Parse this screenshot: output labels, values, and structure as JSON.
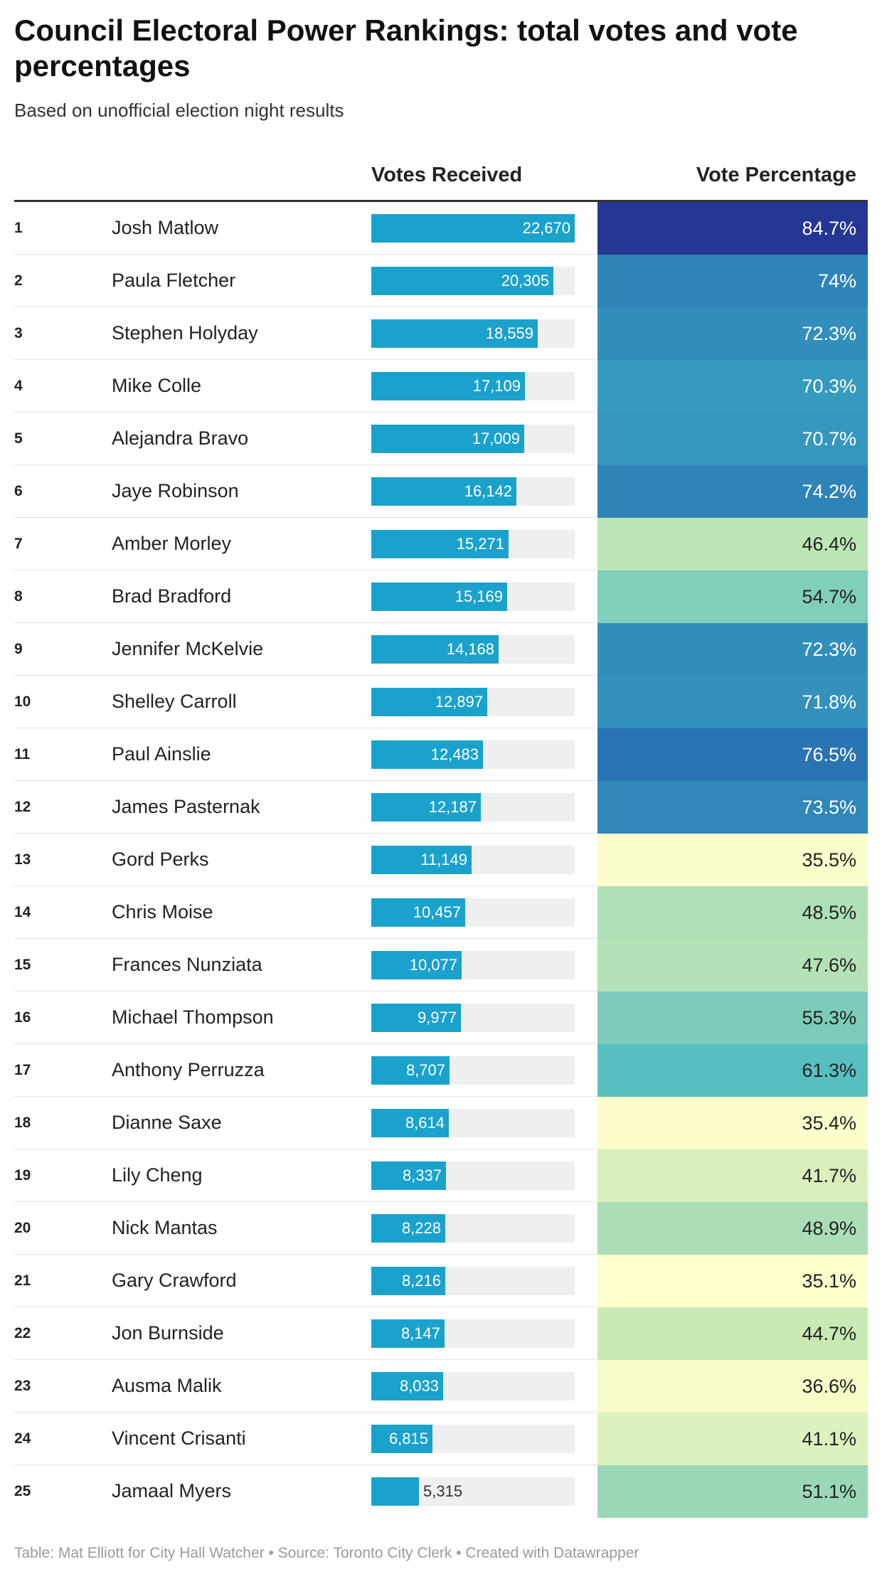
{
  "title": "Council Electoral Power Rankings: total votes and vote percentages",
  "subtitle": "Based on unofficial election night results",
  "columns": {
    "votes": "Votes Received",
    "percentage": "Vote Percentage"
  },
  "footer": "Table: Mat Elliott for City Hall Watcher • Source: Toronto City Clerk • Created with Datawrapper",
  "colors": {
    "bar": "#1aa2cc",
    "bar_track": "#efefef",
    "pct_scale": [
      "#ffffcc",
      "#c7e9b4",
      "#7fcdbb",
      "#41b6c4",
      "#2c7fb8",
      "#253494"
    ]
  },
  "chart_data": {
    "type": "table",
    "votes_max": 22670,
    "rows": [
      {
        "rank": "1",
        "name": "Josh Matlow",
        "votes": 22670,
        "votes_label": "22,670",
        "pct": 84.7,
        "pct_label": "84.7%"
      },
      {
        "rank": "2",
        "name": "Paula Fletcher",
        "votes": 20305,
        "votes_label": "20,305",
        "pct": 74.0,
        "pct_label": "74%"
      },
      {
        "rank": "3",
        "name": "Stephen Holyday",
        "votes": 18559,
        "votes_label": "18,559",
        "pct": 72.3,
        "pct_label": "72.3%"
      },
      {
        "rank": "4",
        "name": "Mike Colle",
        "votes": 17109,
        "votes_label": "17,109",
        "pct": 70.3,
        "pct_label": "70.3%"
      },
      {
        "rank": "5",
        "name": "Alejandra Bravo",
        "votes": 17009,
        "votes_label": "17,009",
        "pct": 70.7,
        "pct_label": "70.7%"
      },
      {
        "rank": "6",
        "name": "Jaye Robinson",
        "votes": 16142,
        "votes_label": "16,142",
        "pct": 74.2,
        "pct_label": "74.2%"
      },
      {
        "rank": "7",
        "name": "Amber Morley",
        "votes": 15271,
        "votes_label": "15,271",
        "pct": 46.4,
        "pct_label": "46.4%"
      },
      {
        "rank": "8",
        "name": "Brad Bradford",
        "votes": 15169,
        "votes_label": "15,169",
        "pct": 54.7,
        "pct_label": "54.7%"
      },
      {
        "rank": "9",
        "name": "Jennifer McKelvie",
        "votes": 14168,
        "votes_label": "14,168",
        "pct": 72.3,
        "pct_label": "72.3%"
      },
      {
        "rank": "10",
        "name": "Shelley Carroll",
        "votes": 12897,
        "votes_label": "12,897",
        "pct": 71.8,
        "pct_label": "71.8%"
      },
      {
        "rank": "11",
        "name": "Paul Ainslie",
        "votes": 12483,
        "votes_label": "12,483",
        "pct": 76.5,
        "pct_label": "76.5%"
      },
      {
        "rank": "12",
        "name": "James Pasternak",
        "votes": 12187,
        "votes_label": "12,187",
        "pct": 73.5,
        "pct_label": "73.5%"
      },
      {
        "rank": "13",
        "name": "Gord Perks",
        "votes": 11149,
        "votes_label": "11,149",
        "pct": 35.5,
        "pct_label": "35.5%"
      },
      {
        "rank": "14",
        "name": "Chris Moise",
        "votes": 10457,
        "votes_label": "10,457",
        "pct": 48.5,
        "pct_label": "48.5%"
      },
      {
        "rank": "15",
        "name": "Frances Nunziata",
        "votes": 10077,
        "votes_label": "10,077",
        "pct": 47.6,
        "pct_label": "47.6%"
      },
      {
        "rank": "16",
        "name": "Michael Thompson",
        "votes": 9977,
        "votes_label": "9,977",
        "pct": 55.3,
        "pct_label": "55.3%"
      },
      {
        "rank": "17",
        "name": "Anthony Perruzza",
        "votes": 8707,
        "votes_label": "8,707",
        "pct": 61.3,
        "pct_label": "61.3%"
      },
      {
        "rank": "18",
        "name": "Dianne Saxe",
        "votes": 8614,
        "votes_label": "8,614",
        "pct": 35.4,
        "pct_label": "35.4%"
      },
      {
        "rank": "19",
        "name": "Lily Cheng",
        "votes": 8337,
        "votes_label": "8,337",
        "pct": 41.7,
        "pct_label": "41.7%"
      },
      {
        "rank": "20",
        "name": "Nick Mantas",
        "votes": 8228,
        "votes_label": "8,228",
        "pct": 48.9,
        "pct_label": "48.9%"
      },
      {
        "rank": "21",
        "name": "Gary Crawford",
        "votes": 8216,
        "votes_label": "8,216",
        "pct": 35.1,
        "pct_label": "35.1%"
      },
      {
        "rank": "22",
        "name": "Jon Burnside",
        "votes": 8147,
        "votes_label": "8,147",
        "pct": 44.7,
        "pct_label": "44.7%"
      },
      {
        "rank": "23",
        "name": "Ausma Malik",
        "votes": 8033,
        "votes_label": "8,033",
        "pct": 36.6,
        "pct_label": "36.6%"
      },
      {
        "rank": "24",
        "name": "Vincent Crisanti",
        "votes": 6815,
        "votes_label": "6,815",
        "pct": 41.1,
        "pct_label": "41.1%"
      },
      {
        "rank": "25",
        "name": "Jamaal Myers",
        "votes": 5315,
        "votes_label": "5,315",
        "pct": 51.1,
        "pct_label": "51.1%"
      }
    ]
  }
}
